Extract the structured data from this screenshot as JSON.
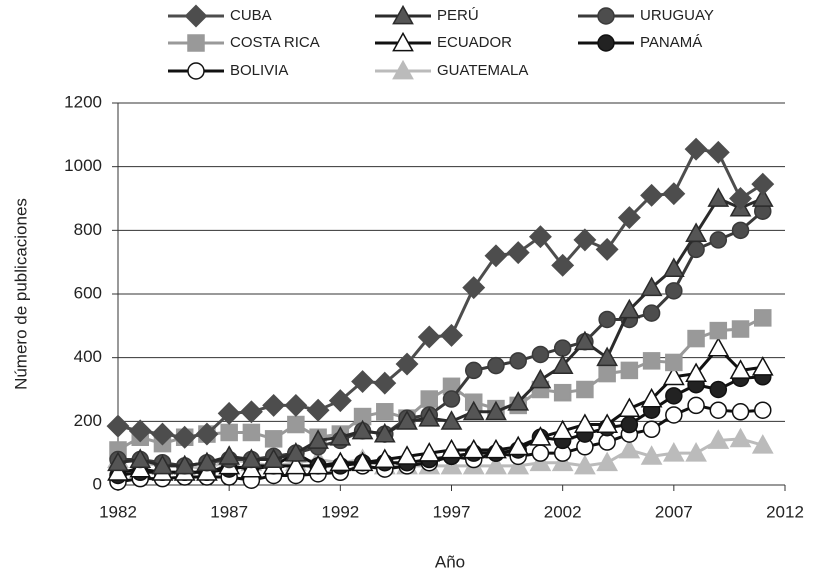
{
  "chart_data": {
    "type": "line",
    "x_label": "Año",
    "y_label": "Número de publicaciones",
    "x": [
      1982,
      1983,
      1984,
      1985,
      1986,
      1987,
      1988,
      1989,
      1990,
      1991,
      1992,
      1993,
      1994,
      1995,
      1996,
      1997,
      1998,
      1999,
      2000,
      2001,
      2002,
      2003,
      2004,
      2005,
      2006,
      2007,
      2008,
      2009,
      2010,
      2011
    ],
    "xlim": [
      1982,
      2012
    ],
    "xticks": [
      1982,
      1987,
      1992,
      1997,
      2002,
      2007,
      2012
    ],
    "ylim": [
      0,
      1200
    ],
    "yticks": [
      0,
      200,
      400,
      600,
      800,
      1000,
      1200
    ],
    "grid": true,
    "series": [
      {
        "name": "CUBA",
        "color": "#4d4d4d",
        "marker": "diamond",
        "marker_fill": "#4d4d4d",
        "values": [
          185,
          170,
          160,
          150,
          160,
          225,
          230,
          250,
          250,
          235,
          265,
          325,
          320,
          380,
          465,
          470,
          620,
          720,
          730,
          780,
          690,
          770,
          740,
          840,
          910,
          915,
          1055,
          1045,
          900,
          945
        ]
      },
      {
        "name": "PERÚ",
        "color": "#2b2b2b",
        "marker": "triangle",
        "marker_fill": "#555555",
        "values": [
          70,
          80,
          60,
          60,
          70,
          90,
          80,
          80,
          100,
          140,
          150,
          170,
          160,
          200,
          210,
          200,
          230,
          230,
          260,
          330,
          375,
          450,
          400,
          550,
          620,
          680,
          790,
          900,
          870,
          900
        ]
      },
      {
        "name": "URUGUAY",
        "color": "#3a3a3a",
        "marker": "circle",
        "marker_fill": "#4d4d4d",
        "values": [
          80,
          80,
          70,
          60,
          70,
          80,
          80,
          90,
          100,
          120,
          140,
          170,
          160,
          210,
          220,
          270,
          360,
          375,
          390,
          410,
          430,
          450,
          520,
          520,
          540,
          610,
          740,
          770,
          800,
          860
        ]
      },
      {
        "name": "COSTA RICA",
        "color": "#999999",
        "marker": "square",
        "marker_fill": "#999999",
        "values": [
          110,
          150,
          130,
          150,
          160,
          165,
          165,
          145,
          190,
          150,
          160,
          215,
          230,
          210,
          270,
          310,
          260,
          240,
          250,
          300,
          290,
          300,
          350,
          360,
          390,
          385,
          460,
          485,
          490,
          525
        ]
      },
      {
        "name": "ECUADOR",
        "color": "#111111",
        "marker": "triangle",
        "marker_fill": "#ffffff",
        "values": [
          40,
          50,
          40,
          40,
          40,
          60,
          50,
          60,
          60,
          60,
          70,
          70,
          80,
          90,
          100,
          110,
          110,
          110,
          120,
          150,
          170,
          190,
          190,
          240,
          270,
          340,
          350,
          430,
          360,
          370
        ]
      },
      {
        "name": "PANAMÁ",
        "color": "#111111",
        "marker": "circle",
        "marker_fill": "#222222",
        "values": [
          30,
          40,
          40,
          40,
          40,
          50,
          60,
          60,
          100,
          60,
          60,
          70,
          70,
          70,
          80,
          90,
          100,
          100,
          110,
          150,
          140,
          160,
          180,
          190,
          235,
          280,
          315,
          300,
          335,
          340
        ]
      },
      {
        "name": "BOLIVIA",
        "color": "#111111",
        "marker": "circle",
        "marker_fill": "#ffffff",
        "values": [
          10,
          20,
          20,
          25,
          25,
          25,
          15,
          30,
          30,
          35,
          40,
          60,
          50,
          60,
          70,
          90,
          80,
          100,
          90,
          100,
          100,
          120,
          135,
          160,
          175,
          220,
          250,
          235,
          230,
          235
        ]
      },
      {
        "name": "GUATEMALA",
        "color": "#bbbbbb",
        "marker": "triangle",
        "marker_fill": "#bbbbbb",
        "values": [
          80,
          70,
          60,
          60,
          50,
          80,
          70,
          60,
          70,
          80,
          70,
          80,
          60,
          60,
          60,
          60,
          60,
          60,
          60,
          70,
          70,
          60,
          70,
          110,
          90,
          100,
          100,
          140,
          145,
          125
        ]
      }
    ]
  }
}
